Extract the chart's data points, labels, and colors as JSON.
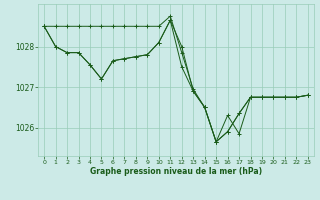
{
  "bg_color": "#cceae7",
  "grid_color": "#99ccb8",
  "line_color": "#1a5c1a",
  "xlabel": "Graphe pression niveau de la mer (hPa)",
  "xlim": [
    -0.5,
    23.5
  ],
  "ylim": [
    1025.3,
    1029.05
  ],
  "yticks": [
    1026,
    1027,
    1028
  ],
  "xticks": [
    0,
    1,
    2,
    3,
    4,
    5,
    6,
    7,
    8,
    9,
    10,
    11,
    12,
    13,
    14,
    15,
    16,
    17,
    18,
    19,
    20,
    21,
    22,
    23
  ],
  "series": [
    {
      "x": [
        0,
        1,
        2,
        3,
        4,
        5,
        6,
        7,
        8,
        9,
        10,
        11,
        12,
        13,
        14,
        15,
        16,
        17,
        18,
        19,
        20,
        21,
        22,
        23
      ],
      "y": [
        1028.5,
        1028.5,
        1028.5,
        1028.5,
        1028.5,
        1028.5,
        1028.5,
        1028.5,
        1028.5,
        1028.5,
        1028.5,
        1028.75,
        1027.85,
        1026.95,
        1026.5,
        1025.65,
        1025.9,
        1026.35,
        1026.75,
        1026.75,
        1026.75,
        1026.75,
        1026.75,
        1026.8
      ]
    },
    {
      "x": [
        0,
        1,
        2,
        3,
        4,
        5,
        6,
        7,
        8,
        9,
        10,
        11,
        12,
        13,
        14,
        15,
        16,
        17,
        18,
        19,
        20,
        21,
        22,
        23
      ],
      "y": [
        1028.5,
        1028.0,
        1027.85,
        1027.85,
        1027.55,
        1027.2,
        1027.65,
        1027.7,
        1027.75,
        1027.8,
        1028.1,
        1028.65,
        1028.0,
        1026.9,
        1026.5,
        1025.65,
        1025.9,
        1026.35,
        1026.75,
        1026.75,
        1026.75,
        1026.75,
        1026.75,
        1026.8
      ]
    },
    {
      "x": [
        0,
        1,
        2,
        3,
        4,
        5,
        6,
        7,
        8,
        9,
        10,
        11,
        12,
        13,
        14,
        15,
        16,
        17,
        18,
        19,
        20,
        21,
        22,
        23
      ],
      "y": [
        1028.5,
        1028.0,
        1027.85,
        1027.85,
        1027.55,
        1027.2,
        1027.65,
        1027.7,
        1027.75,
        1027.8,
        1028.1,
        1028.65,
        1027.5,
        1026.9,
        1026.5,
        1025.65,
        1026.3,
        1025.85,
        1026.75,
        1026.75,
        1026.75,
        1026.75,
        1026.75,
        1026.8
      ]
    }
  ]
}
